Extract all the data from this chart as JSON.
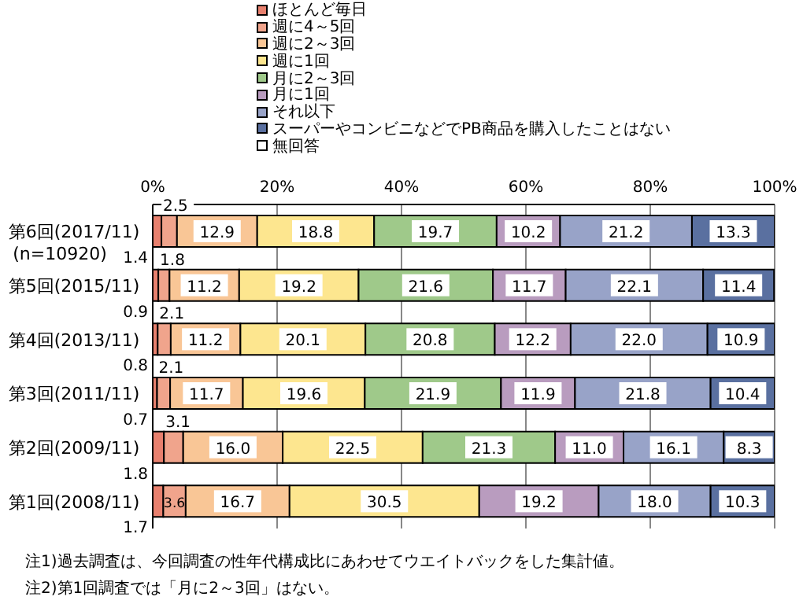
{
  "chart_data": {
    "type": "bar",
    "orientation": "horizontal",
    "stacked": true,
    "grid": "x",
    "legend": "top",
    "categories": [
      "第6回(2017/11)\n(n=10920)",
      "第5回(2015/11)",
      "第4回(2013/11)",
      "第3回(2011/11)",
      "第2回(2009/11)",
      "第1回(2008/11)"
    ],
    "xlim": [
      0,
      100
    ],
    "xticks": [
      {
        "value": 0,
        "label": "0%"
      },
      {
        "value": 20,
        "label": "20%"
      },
      {
        "value": 40,
        "label": "40%"
      },
      {
        "value": 60,
        "label": "60%"
      },
      {
        "value": 80,
        "label": "80%"
      },
      {
        "value": 100,
        "label": "100%"
      }
    ],
    "series": [
      {
        "name": "ほとんど毎日",
        "color": "#e8806e",
        "values": [
          1.4,
          0.9,
          0.8,
          0.7,
          1.8,
          1.7
        ],
        "value_labels": [
          "1.4",
          "0.9",
          "0.8",
          "0.7",
          "1.8",
          "1.7"
        ]
      },
      {
        "name": "週に4～5回",
        "color": "#f0a48c",
        "values": [
          2.5,
          1.8,
          2.1,
          2.1,
          3.1,
          3.6
        ],
        "value_labels": [
          "2.5",
          "1.8",
          "2.1",
          "2.1",
          "3.1",
          "3.6"
        ]
      },
      {
        "name": "週に2～3回",
        "color": "#f9c696",
        "values": [
          12.9,
          11.2,
          11.2,
          11.7,
          16.0,
          16.7
        ],
        "value_labels": [
          "12.9",
          "11.2",
          "11.2",
          "11.7",
          "16.0",
          "16.7"
        ]
      },
      {
        "name": "週に1回",
        "color": "#fde68f",
        "values": [
          18.8,
          19.2,
          20.1,
          19.6,
          22.5,
          30.5
        ],
        "value_labels": [
          "18.8",
          "19.2",
          "20.1",
          "19.6",
          "22.5",
          "30.5"
        ]
      },
      {
        "name": "月に2～3回",
        "color": "#9fc98a",
        "values": [
          19.7,
          21.6,
          20.8,
          21.9,
          21.3,
          null
        ],
        "value_labels": [
          "19.7",
          "21.6",
          "20.8",
          "21.9",
          "21.3",
          null
        ]
      },
      {
        "name": "月に1回",
        "color": "#b99cbf",
        "values": [
          10.2,
          11.7,
          12.2,
          11.9,
          11.0,
          19.2
        ],
        "value_labels": [
          "10.2",
          "11.7",
          "12.2",
          "11.9",
          "11.0",
          "19.2"
        ]
      },
      {
        "name": "それ以下",
        "color": "#98a3c8",
        "values": [
          21.2,
          22.1,
          22.0,
          21.8,
          16.1,
          18.0
        ],
        "value_labels": [
          "21.2",
          "22.1",
          "22.0",
          "21.8",
          "16.1",
          "18.0"
        ]
      },
      {
        "name": "スーパーやコンビニなどでPB商品を購入したことはない",
        "color": "#5a70a0",
        "values": [
          13.3,
          11.4,
          10.9,
          10.4,
          8.3,
          10.3
        ],
        "value_labels": [
          "13.3",
          "11.4",
          "10.9",
          "10.4",
          "8.3",
          "10.3"
        ]
      },
      {
        "name": "無回答",
        "color": "#ffffff",
        "values": [
          null,
          null,
          null,
          null,
          null,
          null
        ]
      }
    ],
    "annotations": [
      "注1)過去調査は、今回調査の性年代構成比にあわせてウエイトバックをした集計値。",
      "注2)第1回調査では「月に2～3回」はない。"
    ]
  }
}
